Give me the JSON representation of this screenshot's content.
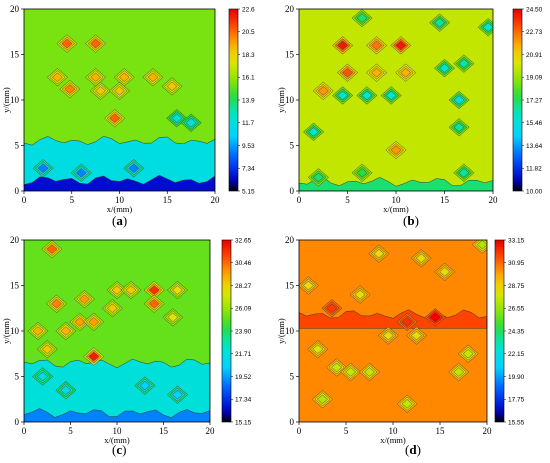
{
  "chart_data": [
    {
      "type": "heatmap",
      "caption_letter": "a",
      "xlabel": "x/(mm)",
      "ylabel": "y/(mm)",
      "x_ticks": [
        0,
        5,
        10,
        15,
        20
      ],
      "y_ticks": [
        0,
        5,
        10,
        15,
        20
      ],
      "xlim": [
        0,
        20
      ],
      "ylim": [
        0,
        20
      ],
      "colorbar_ticks": [
        "22.6",
        "20.5",
        "18.3",
        "16.1",
        "13.9",
        "11.7",
        "9.53",
        "7.34",
        "5.15"
      ],
      "vmin": 5.15,
      "vmax": 22.6,
      "background_value": 15.5,
      "features": [
        {
          "kind": "band",
          "y_from": 0,
          "y_to": 5.5,
          "value": 11.5
        },
        {
          "kind": "band",
          "y_from": 0,
          "y_to": 1.2,
          "value": 6.5
        },
        {
          "kind": "spot",
          "x": 4.5,
          "y": 16.2,
          "value": 20.5
        },
        {
          "kind": "spot",
          "x": 7.5,
          "y": 16.2,
          "value": 20.5
        },
        {
          "kind": "spot",
          "x": 4.8,
          "y": 11.2,
          "value": 20.0
        },
        {
          "kind": "spot",
          "x": 9.5,
          "y": 8.0,
          "value": 20.5
        },
        {
          "kind": "spot",
          "x": 3.5,
          "y": 12.5,
          "value": 19.0
        },
        {
          "kind": "spot",
          "x": 7.5,
          "y": 12.5,
          "value": 19.0
        },
        {
          "kind": "spot",
          "x": 10.5,
          "y": 12.5,
          "value": 19.0
        },
        {
          "kind": "spot",
          "x": 13.5,
          "y": 12.5,
          "value": 19.0
        },
        {
          "kind": "spot",
          "x": 8.0,
          "y": 11.0,
          "value": 18.5
        },
        {
          "kind": "spot",
          "x": 10.0,
          "y": 11.0,
          "value": 18.5
        },
        {
          "kind": "spot",
          "x": 15.5,
          "y": 11.5,
          "value": 18.5
        },
        {
          "kind": "spot",
          "x": 16.0,
          "y": 8.0,
          "value": 12.0
        },
        {
          "kind": "spot",
          "x": 17.5,
          "y": 7.5,
          "value": 12.0
        },
        {
          "kind": "spot",
          "x": 2.0,
          "y": 2.5,
          "value": 9.0
        },
        {
          "kind": "spot",
          "x": 6.0,
          "y": 2.0,
          "value": 9.0
        },
        {
          "kind": "spot",
          "x": 11.5,
          "y": 2.5,
          "value": 9.0
        }
      ]
    },
    {
      "type": "heatmap",
      "caption_letter": "b",
      "xlabel": "x/(mm)",
      "ylabel": "y/(mm)",
      "x_ticks": [
        0,
        5,
        10,
        15,
        20
      ],
      "y_ticks": [
        0,
        5,
        10,
        15,
        20
      ],
      "xlim": [
        0,
        20
      ],
      "ylim": [
        0,
        20
      ],
      "colorbar_ticks": [
        "24.50",
        "22.73",
        "20.91",
        "19.09",
        "17.27",
        "15.46",
        "13.64",
        "11.82",
        "10.00"
      ],
      "vmin": 10.0,
      "vmax": 24.5,
      "background_value": 19.8,
      "features": [
        {
          "kind": "spot",
          "x": 4.5,
          "y": 16.0,
          "value": 24.0
        },
        {
          "kind": "spot",
          "x": 10.5,
          "y": 16.0,
          "value": 24.0
        },
        {
          "kind": "spot",
          "x": 8.0,
          "y": 16.0,
          "value": 22.5
        },
        {
          "kind": "spot",
          "x": 5.0,
          "y": 13.0,
          "value": 23.0
        },
        {
          "kind": "spot",
          "x": 2.5,
          "y": 11.0,
          "value": 22.0
        },
        {
          "kind": "spot",
          "x": 8.0,
          "y": 13.0,
          "value": 21.5
        },
        {
          "kind": "spot",
          "x": 11.0,
          "y": 13.0,
          "value": 21.5
        },
        {
          "kind": "spot",
          "x": 4.5,
          "y": 10.5,
          "value": 16.0
        },
        {
          "kind": "spot",
          "x": 7.0,
          "y": 10.5,
          "value": 16.0
        },
        {
          "kind": "spot",
          "x": 9.5,
          "y": 10.5,
          "value": 16.0
        },
        {
          "kind": "spot",
          "x": 16.5,
          "y": 10.0,
          "value": 15.5
        },
        {
          "kind": "spot",
          "x": 1.5,
          "y": 6.5,
          "value": 16.0
        },
        {
          "kind": "spot",
          "x": 15.0,
          "y": 13.5,
          "value": 16.0
        },
        {
          "kind": "spot",
          "x": 17.0,
          "y": 14.0,
          "value": 16.5
        },
        {
          "kind": "spot",
          "x": 6.5,
          "y": 19.0,
          "value": 17.0
        },
        {
          "kind": "spot",
          "x": 14.5,
          "y": 18.5,
          "value": 16.5
        },
        {
          "kind": "spot",
          "x": 16.5,
          "y": 7.0,
          "value": 16.5
        },
        {
          "kind": "spot",
          "x": 17.0,
          "y": 2.0,
          "value": 16.5
        },
        {
          "kind": "spot",
          "x": 2.0,
          "y": 1.5,
          "value": 17.0
        },
        {
          "kind": "spot",
          "x": 6.5,
          "y": 2.0,
          "value": 17.5
        },
        {
          "kind": "spot",
          "x": 10.0,
          "y": 4.5,
          "value": 22.0
        },
        {
          "kind": "spot",
          "x": 19.5,
          "y": 18.0,
          "value": 16.0
        },
        {
          "kind": "band",
          "y_from": 0,
          "y_to": 1.0,
          "value": 17.0
        }
      ]
    },
    {
      "type": "heatmap",
      "caption_letter": "c",
      "xlabel": "x/(mm)",
      "ylabel": "y/(mm)",
      "x_ticks": [
        0,
        5,
        10,
        15,
        20
      ],
      "y_ticks": [
        0,
        5,
        10,
        15,
        20
      ],
      "xlim": [
        0,
        20
      ],
      "ylim": [
        0,
        20
      ],
      "colorbar_ticks": [
        "32.65",
        "30.46",
        "28.27",
        "26.09",
        "23.90",
        "21.71",
        "19.52",
        "17.34",
        "15.15"
      ],
      "vmin": 15.15,
      "vmax": 32.65,
      "background_value": 25.2,
      "features": [
        {
          "kind": "band",
          "y_from": 0,
          "y_to": 6.5,
          "value": 21.8
        },
        {
          "kind": "band",
          "y_from": 0,
          "y_to": 1.0,
          "value": 19.0
        },
        {
          "kind": "spot",
          "x": 3.0,
          "y": 19.0,
          "value": 30.5
        },
        {
          "kind": "spot",
          "x": 14.0,
          "y": 14.5,
          "value": 31.5
        },
        {
          "kind": "spot",
          "x": 14.0,
          "y": 13.0,
          "value": 30.5
        },
        {
          "kind": "spot",
          "x": 7.5,
          "y": 7.2,
          "value": 32.0
        },
        {
          "kind": "spot",
          "x": 3.5,
          "y": 13.0,
          "value": 30.0
        },
        {
          "kind": "spot",
          "x": 6.5,
          "y": 13.5,
          "value": 29.5
        },
        {
          "kind": "spot",
          "x": 6.0,
          "y": 11.0,
          "value": 29.5
        },
        {
          "kind": "spot",
          "x": 7.5,
          "y": 11.0,
          "value": 29.5
        },
        {
          "kind": "spot",
          "x": 1.5,
          "y": 10.0,
          "value": 29.0
        },
        {
          "kind": "spot",
          "x": 4.5,
          "y": 10.0,
          "value": 29.0
        },
        {
          "kind": "spot",
          "x": 2.5,
          "y": 8.0,
          "value": 28.5
        },
        {
          "kind": "spot",
          "x": 10.0,
          "y": 14.5,
          "value": 28.5
        },
        {
          "kind": "spot",
          "x": 11.5,
          "y": 14.5,
          "value": 28.5
        },
        {
          "kind": "spot",
          "x": 9.5,
          "y": 12.5,
          "value": 28.5
        },
        {
          "kind": "spot",
          "x": 16.5,
          "y": 14.5,
          "value": 28.0
        },
        {
          "kind": "spot",
          "x": 16.0,
          "y": 11.5,
          "value": 27.5
        },
        {
          "kind": "spot",
          "x": 2.0,
          "y": 5.0,
          "value": 21.5
        },
        {
          "kind": "spot",
          "x": 4.5,
          "y": 3.5,
          "value": 21.5
        },
        {
          "kind": "spot",
          "x": 13.0,
          "y": 4.0,
          "value": 20.5
        },
        {
          "kind": "spot",
          "x": 16.5,
          "y": 3.0,
          "value": 20.5
        }
      ]
    },
    {
      "type": "heatmap",
      "caption_letter": "d",
      "xlabel": "x/(mm)",
      "ylabel": "y/(mm)",
      "x_ticks": [
        0,
        5,
        10,
        15,
        20
      ],
      "y_ticks": [
        0,
        5,
        10,
        15,
        20
      ],
      "xlim": [
        0,
        20
      ],
      "ylim": [
        0,
        20
      ],
      "colorbar_ticks": [
        "33.15",
        "30.95",
        "28.75",
        "26.55",
        "24.35",
        "22.15",
        "19.90",
        "17.75",
        "15.55"
      ],
      "vmin": 15.55,
      "vmax": 33.15,
      "background_value": 30.4,
      "features": [
        {
          "kind": "band",
          "y_from": 10.3,
          "y_to": 11.8,
          "value": 31.6
        },
        {
          "kind": "spot",
          "x": 14.5,
          "y": 11.5,
          "value": 33.0
        },
        {
          "kind": "spot",
          "x": 11.5,
          "y": 11.0,
          "value": 32.0
        },
        {
          "kind": "spot",
          "x": 3.5,
          "y": 12.5,
          "value": 31.8
        },
        {
          "kind": "spot",
          "x": 8.5,
          "y": 18.5,
          "value": 28.5
        },
        {
          "kind": "spot",
          "x": 13.0,
          "y": 18.0,
          "value": 28.5
        },
        {
          "kind": "spot",
          "x": 15.5,
          "y": 16.5,
          "value": 28.5
        },
        {
          "kind": "spot",
          "x": 1.0,
          "y": 15.0,
          "value": 28.5
        },
        {
          "kind": "spot",
          "x": 6.5,
          "y": 14.0,
          "value": 28.5
        },
        {
          "kind": "spot",
          "x": 2.0,
          "y": 8.0,
          "value": 28.0
        },
        {
          "kind": "spot",
          "x": 9.5,
          "y": 9.5,
          "value": 28.5
        },
        {
          "kind": "spot",
          "x": 12.5,
          "y": 9.5,
          "value": 28.5
        },
        {
          "kind": "spot",
          "x": 4.0,
          "y": 6.0,
          "value": 27.5
        },
        {
          "kind": "spot",
          "x": 5.5,
          "y": 5.5,
          "value": 27.5
        },
        {
          "kind": "spot",
          "x": 7.5,
          "y": 5.5,
          "value": 27.5
        },
        {
          "kind": "spot",
          "x": 18.0,
          "y": 7.5,
          "value": 27.5
        },
        {
          "kind": "spot",
          "x": 17.0,
          "y": 5.5,
          "value": 27.5
        },
        {
          "kind": "spot",
          "x": 11.5,
          "y": 2.0,
          "value": 27.5
        },
        {
          "kind": "spot",
          "x": 2.5,
          "y": 2.5,
          "value": 27.0
        },
        {
          "kind": "spot",
          "x": 19.5,
          "y": 19.5,
          "value": 27.0
        }
      ]
    }
  ]
}
